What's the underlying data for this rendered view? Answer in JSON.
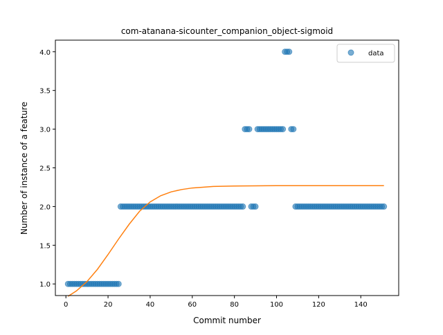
{
  "chart_data": {
    "type": "scatter",
    "title": "com-atanana-sicounter_companion_object-sigmoid",
    "xlabel": "Commit number",
    "ylabel": "Number of instance of a feature",
    "xlim": [
      -5,
      158
    ],
    "ylim": [
      0.85,
      4.15
    ],
    "xticks": [
      0,
      20,
      40,
      60,
      80,
      100,
      120,
      140
    ],
    "yticks": [
      1.0,
      1.5,
      2.0,
      2.5,
      3.0,
      3.5,
      4.0
    ],
    "xtick_labels": [
      "0",
      "20",
      "40",
      "60",
      "80",
      "100",
      "120",
      "140"
    ],
    "ytick_labels": [
      "1.0",
      "1.5",
      "2.0",
      "2.5",
      "3.0",
      "3.5",
      "4.0"
    ],
    "grid": false,
    "legend": {
      "position": "top-right",
      "entries": [
        "data"
      ]
    },
    "colors": {
      "data": "#1f77b4",
      "fit": "#ff7f0e"
    },
    "series": [
      {
        "name": "data",
        "kind": "scatter",
        "segments": [
          {
            "x_from": 1,
            "x_to": 25,
            "y": 1
          },
          {
            "x_from": 26,
            "x_to": 84,
            "y": 2
          },
          {
            "x_from": 85,
            "x_to": 87,
            "y": 3
          },
          {
            "x_from": 88,
            "x_to": 90,
            "y": 2
          },
          {
            "x_from": 91,
            "x_to": 103,
            "y": 3
          },
          {
            "x_from": 104,
            "x_to": 106,
            "y": 4
          },
          {
            "x_from": 107,
            "x_to": 108,
            "y": 3
          },
          {
            "x_from": 109,
            "x_to": 151,
            "y": 2
          }
        ]
      },
      {
        "kind": "line",
        "x": [
          1,
          5,
          10,
          15,
          20,
          25,
          30,
          35,
          40,
          45,
          50,
          55,
          60,
          70,
          80,
          90,
          100,
          110,
          120,
          130,
          140,
          151
        ],
        "y": [
          0.84,
          0.91,
          1.03,
          1.19,
          1.38,
          1.58,
          1.77,
          1.94,
          2.06,
          2.14,
          2.19,
          2.22,
          2.24,
          2.26,
          2.265,
          2.268,
          2.27,
          2.27,
          2.27,
          2.27,
          2.27,
          2.27
        ]
      }
    ]
  }
}
